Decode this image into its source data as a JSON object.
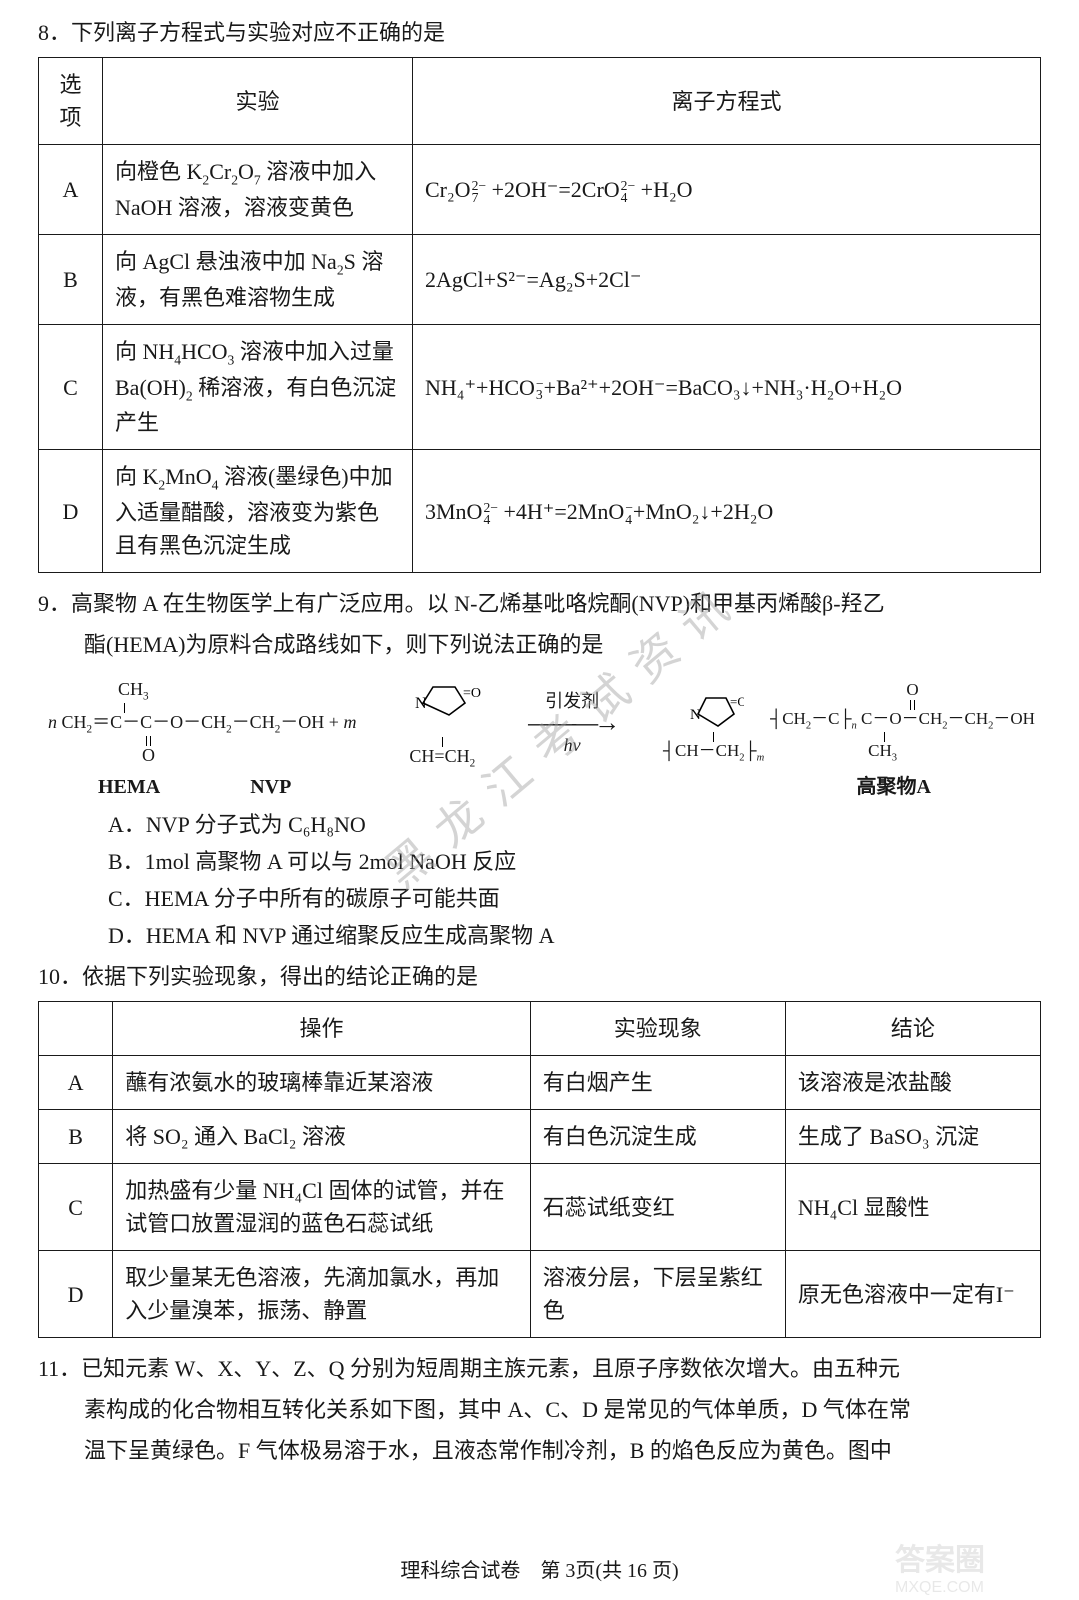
{
  "q8": {
    "prompt": "8．下列离子方程式与实验对应不正确的是",
    "table": {
      "headers": [
        "选项",
        "实验",
        "离子方程式"
      ],
      "rows": [
        {
          "opt": "A",
          "exp_parts": [
            "向橙色 K",
            "2",
            "Cr",
            "2",
            "O",
            "7",
            " 溶液中加入 NaOH 溶液，溶液变黄色"
          ],
          "eq_html": "Cr₂O<span class='supsub'><span>2−</span><span>7</span></span> +2OH⁻=2CrO<span class='supsub'><span>2−</span><span>4</span></span> +H₂O"
        },
        {
          "opt": "B",
          "exp_parts": [
            "向 AgCl 悬浊液中加 Na",
            "2",
            "S 溶液，有黑色难溶物生成"
          ],
          "eq_html": "2AgCl+S²⁻=Ag₂S+2Cl⁻"
        },
        {
          "opt": "C",
          "exp_parts": [
            "向 NH",
            "4",
            "HCO",
            "3",
            " 溶液中加入过量 Ba(OH)",
            "2",
            " 稀溶液，有白色沉淀产生"
          ],
          "eq_html": "NH₄⁺+HCO<span class='supsub'><span>−</span><span>3</span></span>+Ba²⁺+2OH⁻=BaCO₃↓+NH₃·H₂O+H₂O"
        },
        {
          "opt": "D",
          "exp_parts": [
            "向 K",
            "2",
            "MnO",
            "4",
            " 溶液(墨绿色)中加入适量醋酸，溶液变为紫色且有黑色沉淀生成"
          ],
          "eq_html": "3MnO<span class='supsub'><span>2−</span><span>4</span></span> +4H⁺=2MnO<span class='supsub'><span>−</span><span>4</span></span>+MnO₂↓+2H₂O"
        }
      ]
    }
  },
  "q9": {
    "line1": "9．高聚物 A 在生物医学上有广泛应用。以 N-乙烯基吡咯烷酮(NVP)和甲基丙烯酸β-羟乙",
    "line2": "酯(HEMA)为原料合成路线如下，则下列说法正确的是",
    "labels": {
      "hema": "HEMA",
      "nvp": "NVP",
      "prod": "高聚物A"
    },
    "arrow_top": "引发剂",
    "arrow_bot": "hv",
    "structure_note": "HEMA: CH2=C(CH3)-C(=O)-O-CH2-CH2-OH ; NVP: cyclic N-C=O ring with N-CH=CH2 ; product: copolymer chain with repeating units m and n",
    "options": {
      "A": "A．NVP 分子式为 C₆H₈NO",
      "B": "B．1mol 高聚物 A 可以与 2mol NaOH 反应",
      "C": "C．HEMA 分子中所有的碳原子可能共面",
      "D": "D．HEMA 和 NVP 通过缩聚反应生成高聚物 A"
    }
  },
  "q10": {
    "prompt": "10．依据下列实验现象，得出的结论正确的是",
    "table": {
      "headers": [
        "",
        "操作",
        "实验现象",
        "结论"
      ],
      "rows": [
        {
          "opt": "A",
          "op": "蘸有浓氨水的玻璃棒靠近某溶液",
          "ph": "有白烟产生",
          "cl": "该溶液是浓盐酸"
        },
        {
          "opt": "B",
          "op_html": "将 SO₂ 通入 BaCl₂ 溶液",
          "ph": "有白色沉淀生成",
          "cl_html": "生成了 BaSO₃ 沉淀"
        },
        {
          "opt": "C",
          "op_html": "加热盛有少量 NH₄Cl 固体的试管，并在试管口放置湿润的蓝色石蕊试纸",
          "ph": "石蕊试纸变红",
          "cl_html": "NH₄Cl 显酸性"
        },
        {
          "opt": "D",
          "op": "取少量某无色溶液，先滴加氯水，再加入少量溴苯，振荡、静置",
          "ph": "溶液分层，下层呈紫红色",
          "cl_html": "原无色溶液中一定有I⁻"
        }
      ]
    }
  },
  "q11": {
    "line1": "11．已知元素 W、X、Y、Z、Q 分别为短周期主族元素，且原子序数依次增大。由五种元",
    "line2": "素构成的化合物相互转化关系如下图，其中 A、C、D 是常见的气体单质，D 气体在常",
    "line3": "温下呈黄绿色。F 气体极易溶于水，且液态常作制冷剂，B 的焰色反应为黄色。图中"
  },
  "footer": "理科综合试卷　第 3页(共 16 页)",
  "watermark": "黑龙江考试资讯",
  "colors": {
    "text": "#191919",
    "border": "#1a1a1a",
    "bg": "#ffffff",
    "wm": "#9b9b9b"
  }
}
